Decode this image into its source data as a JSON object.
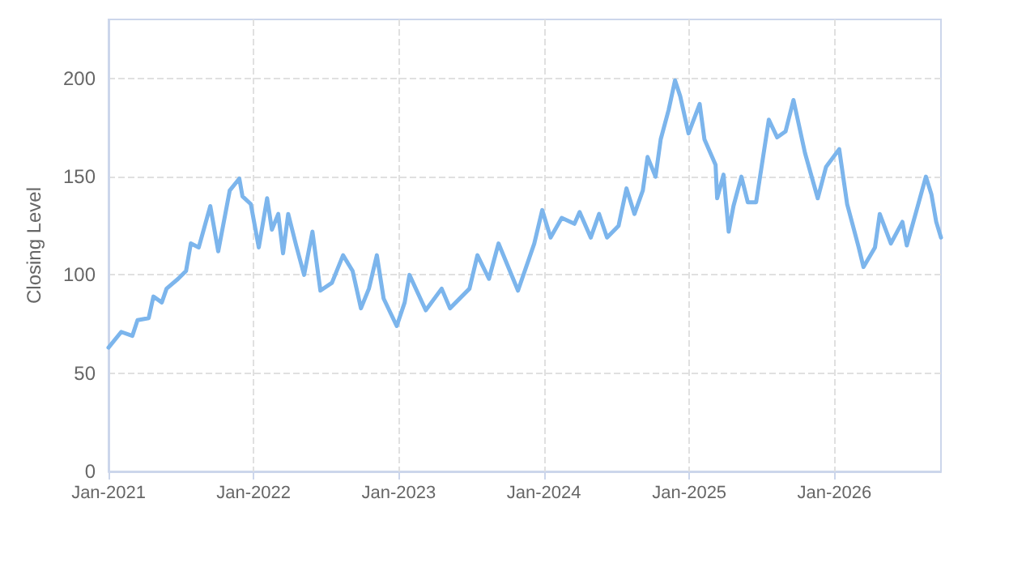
{
  "chart_data": {
    "type": "line",
    "ylabel": "Closing Level",
    "xlim": [
      "2021-01-01",
      "2026-09-26"
    ],
    "ylim": [
      0,
      230
    ],
    "yticks": [
      0,
      50,
      100,
      150,
      200
    ],
    "xticks": [
      {
        "value": "2021-01-01",
        "label": "Jan-2021"
      },
      {
        "value": "2022-01-01",
        "label": "Jan-2022"
      },
      {
        "value": "2023-01-01",
        "label": "Jan-2023"
      },
      {
        "value": "2024-01-01",
        "label": "Jan-2024"
      },
      {
        "value": "2025-01-01",
        "label": "Jan-2025"
      },
      {
        "value": "2026-01-01",
        "label": "Jan-2026"
      }
    ],
    "grid": true,
    "marker": "none",
    "line_style": "solid",
    "x": [
      "2021-01-01",
      "2021-02-02",
      "2021-03-02",
      "2021-03-15",
      "2021-04-12",
      "2021-04-24",
      "2021-05-15",
      "2021-05-27",
      "2021-06-25",
      "2021-07-15",
      "2021-07-27",
      "2021-08-16",
      "2021-09-14",
      "2021-10-04",
      "2021-11-02",
      "2021-11-26",
      "2021-12-04",
      "2021-12-25",
      "2022-01-14",
      "2022-02-04",
      "2022-02-16",
      "2022-03-04",
      "2022-03-16",
      "2022-03-29",
      "2022-04-18",
      "2022-05-08",
      "2022-05-29",
      "2022-06-18",
      "2022-07-17",
      "2022-08-14",
      "2022-09-07",
      "2022-09-28",
      "2022-10-18",
      "2022-11-07",
      "2022-11-24",
      "2022-12-27",
      "2023-01-16",
      "2023-01-28",
      "2023-03-10",
      "2023-04-19",
      "2023-05-10",
      "2023-06-28",
      "2023-07-18",
      "2023-08-16",
      "2023-09-09",
      "2023-10-28",
      "2023-12-08",
      "2023-12-28",
      "2024-01-18",
      "2024-02-15",
      "2024-03-18",
      "2024-03-31",
      "2024-04-28",
      "2024-05-19",
      "2024-06-08",
      "2024-07-07",
      "2024-07-27",
      "2024-08-16",
      "2024-09-06",
      "2024-09-18",
      "2024-10-08",
      "2024-10-21",
      "2024-11-10",
      "2024-11-26",
      "2024-12-09",
      "2024-12-30",
      "2025-01-27",
      "2025-02-08",
      "2025-03-08",
      "2025-03-12",
      "2025-03-28",
      "2025-04-10",
      "2025-04-22",
      "2025-05-12",
      "2025-05-28",
      "2025-06-18",
      "2025-07-20",
      "2025-08-10",
      "2025-08-31",
      "2025-09-20",
      "2025-10-19",
      "2025-11-20",
      "2025-12-11",
      "2026-01-13",
      "2026-02-02",
      "2026-03-03",
      "2026-03-15",
      "2026-04-13",
      "2026-04-25",
      "2026-05-23",
      "2026-06-21",
      "2026-07-02",
      "2026-08-04",
      "2026-08-19",
      "2026-09-02",
      "2026-09-14",
      "2026-09-26"
    ],
    "series": [
      {
        "color": "#7cb5ec",
        "values": [
          63,
          71,
          69,
          77,
          78,
          89,
          86,
          93,
          98,
          102,
          116,
          114,
          135,
          112,
          143,
          149,
          140,
          136,
          114,
          139,
          123,
          131,
          111,
          131,
          115,
          100,
          122,
          92,
          96,
          110,
          102,
          83,
          93,
          110,
          88,
          74,
          86,
          100,
          82,
          93,
          83,
          93,
          110,
          98,
          116,
          92,
          116,
          133,
          119,
          129,
          126,
          132,
          119,
          131,
          119,
          125,
          144,
          131,
          143,
          160,
          150,
          169,
          184,
          199,
          191,
          172,
          187,
          169,
          156,
          139,
          151,
          122,
          135,
          150,
          137,
          137,
          179,
          170,
          173,
          189,
          162,
          139,
          155,
          164,
          136,
          114,
          104,
          114,
          131,
          116,
          127,
          115,
          139,
          150,
          141,
          127,
          119
        ]
      }
    ]
  }
}
